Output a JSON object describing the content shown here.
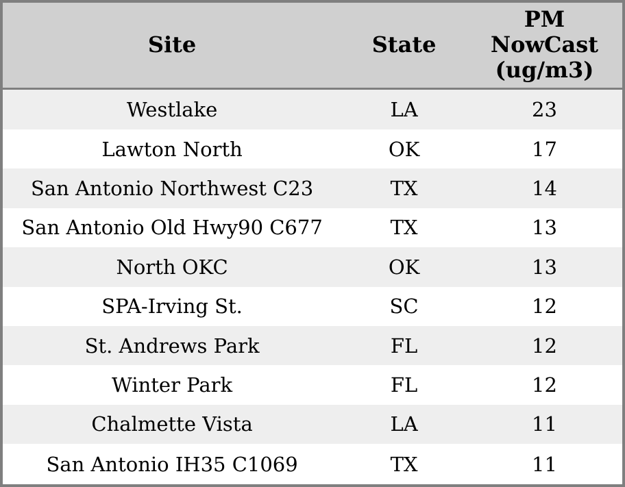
{
  "table": {
    "columns": [
      {
        "label": "Site"
      },
      {
        "label": "State"
      },
      {
        "label": "PM\nNowCast\n(ug/m3)"
      }
    ],
    "rows": [
      {
        "site": "Westlake",
        "state": "LA",
        "value": "23"
      },
      {
        "site": "Lawton North",
        "state": "OK",
        "value": "17"
      },
      {
        "site": "San Antonio Northwest C23",
        "state": "TX",
        "value": "14"
      },
      {
        "site": "San Antonio Old Hwy90 C677",
        "state": "TX",
        "value": "13"
      },
      {
        "site": "North OKC",
        "state": "OK",
        "value": "13"
      },
      {
        "site": "SPA-Irving St.",
        "state": "SC",
        "value": "12"
      },
      {
        "site": "St. Andrews Park",
        "state": "FL",
        "value": "12"
      },
      {
        "site": "Winter Park",
        "state": "FL",
        "value": "12"
      },
      {
        "site": "Chalmette Vista",
        "state": "LA",
        "value": "11"
      },
      {
        "site": "San Antonio IH35 C1069",
        "state": "TX",
        "value": "11"
      }
    ]
  },
  "colors": {
    "border": "#7f7f7f",
    "header_bg": "#d0d0d0",
    "row_alt_bg": "#eeeeee",
    "row_bg": "#ffffff",
    "text": "#000000"
  },
  "chart_data": {
    "type": "table",
    "title": "",
    "columns": [
      "Site",
      "State",
      "PM NowCast (ug/m3)"
    ],
    "rows": [
      [
        "Westlake",
        "LA",
        23
      ],
      [
        "Lawton North",
        "OK",
        17
      ],
      [
        "San Antonio Northwest C23",
        "TX",
        14
      ],
      [
        "San Antonio Old Hwy90 C677",
        "TX",
        13
      ],
      [
        "North OKC",
        "OK",
        13
      ],
      [
        "SPA-Irving St.",
        "SC",
        12
      ],
      [
        "St. Andrews Park",
        "FL",
        12
      ],
      [
        "Winter Park",
        "FL",
        12
      ],
      [
        "Chalmette Vista",
        "LA",
        11
      ],
      [
        "San Antonio IH35 C1069",
        "TX",
        11
      ]
    ]
  }
}
